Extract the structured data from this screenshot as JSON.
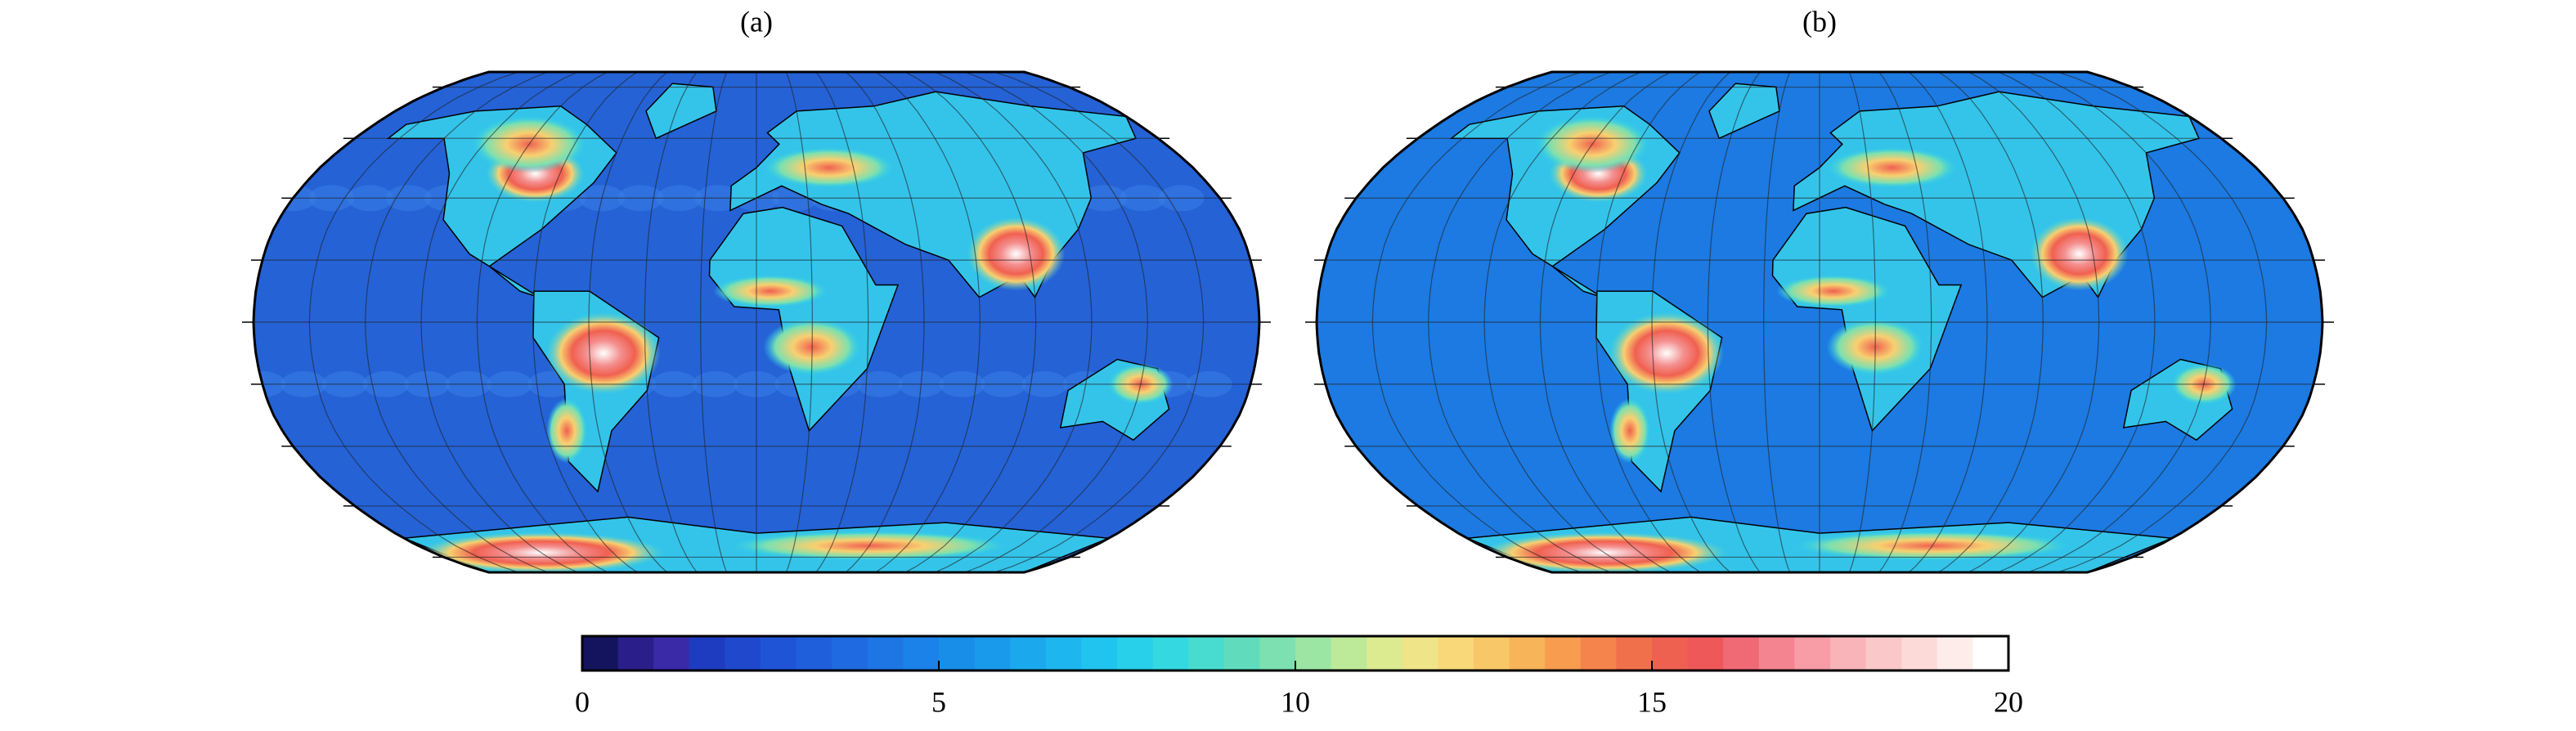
{
  "panels": [
    {
      "label": "(a)"
    },
    {
      "label": "(b)"
    }
  ],
  "colorbar": {
    "lim": [
      0,
      20
    ],
    "ticks": [
      0,
      5,
      10,
      15,
      20
    ],
    "colors": [
      "#14145e",
      "#2a1f8a",
      "#3a2aa8",
      "#1e3cc0",
      "#1f48cc",
      "#2054d6",
      "#205fdc",
      "#1f6ae0",
      "#1d76e4",
      "#1a82e8",
      "#188ee8",
      "#199aea",
      "#1ba8ec",
      "#1db6ee",
      "#20c4ee",
      "#28d0ea",
      "#34d8e0",
      "#48dcd0",
      "#60dcbc",
      "#7ce0b0",
      "#9ce6a4",
      "#bcea98",
      "#dcea90",
      "#f0e488",
      "#f8d878",
      "#f8c868",
      "#f8b458",
      "#f89c50",
      "#f4844c",
      "#f0704c",
      "#ee6050",
      "#ee5858",
      "#f06a76",
      "#f48490",
      "#f89ca6",
      "#f8b4b8",
      "#fac8c8",
      "#fcdad8",
      "#feeceb",
      "#ffffff"
    ]
  }
}
